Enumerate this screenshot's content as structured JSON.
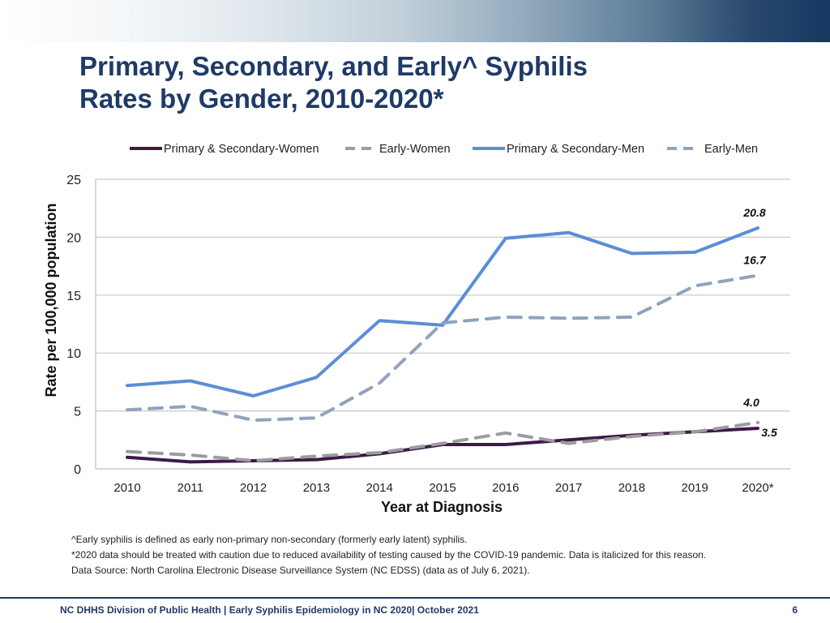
{
  "slide": {
    "title": "Primary, Secondary, and Early^ Syphilis\nRates by Gender, 2010-2020*",
    "footnotes": [
      "^Early syphilis is defined as early non-primary non-secondary  (formerly early latent) syphilis.",
      "*2020 data should be treated with caution due to reduced availability of testing caused by the COVID-19 pandemic. Data is italicized for this reason.",
      "Data Source: North Carolina Electronic Disease Surveillance System (NC EDSS) (data as of July 6, 2021)."
    ],
    "footer": "NC DHHS Division of Public Health | Early Syphilis Epidemiology in NC 2020| October 2021",
    "page_number": "6"
  },
  "chart_data": {
    "type": "line",
    "xlabel": "Year at Diagnosis",
    "ylabel": "Rate per 100,000 population",
    "ylim": [
      0,
      25
    ],
    "yticks": [
      0,
      5,
      10,
      15,
      20,
      25
    ],
    "categories": [
      "2010",
      "2011",
      "2012",
      "2013",
      "2014",
      "2015",
      "2016",
      "2017",
      "2018",
      "2019",
      "2020*"
    ],
    "grid": true,
    "legend_position": "top",
    "series": [
      {
        "name": "Primary & Secondary-Women",
        "color": "#3d1a47",
        "dash": "solid",
        "values": [
          1.0,
          0.6,
          0.7,
          0.8,
          1.3,
          2.1,
          2.1,
          2.5,
          2.9,
          3.2,
          3.5
        ],
        "end_label": "3.5"
      },
      {
        "name": "Early-Women",
        "color": "#9c9c9c",
        "dash": "dashed",
        "values": [
          1.5,
          1.2,
          0.7,
          1.1,
          1.4,
          2.2,
          3.1,
          2.2,
          2.8,
          3.2,
          4.0
        ],
        "end_label": "4.0"
      },
      {
        "name": "Primary & Secondary-Men",
        "color": "#5b8ed6",
        "dash": "solid",
        "values": [
          7.2,
          7.6,
          6.3,
          7.9,
          12.8,
          12.4,
          19.9,
          20.4,
          18.6,
          18.7,
          20.8
        ],
        "end_label": "20.8"
      },
      {
        "name": "Early-Men",
        "color": "#8fa3bd",
        "dash": "dashed",
        "values": [
          5.1,
          5.4,
          4.2,
          4.4,
          7.4,
          12.6,
          13.1,
          13.0,
          13.1,
          15.8,
          16.7
        ],
        "end_label": "16.7"
      }
    ]
  }
}
